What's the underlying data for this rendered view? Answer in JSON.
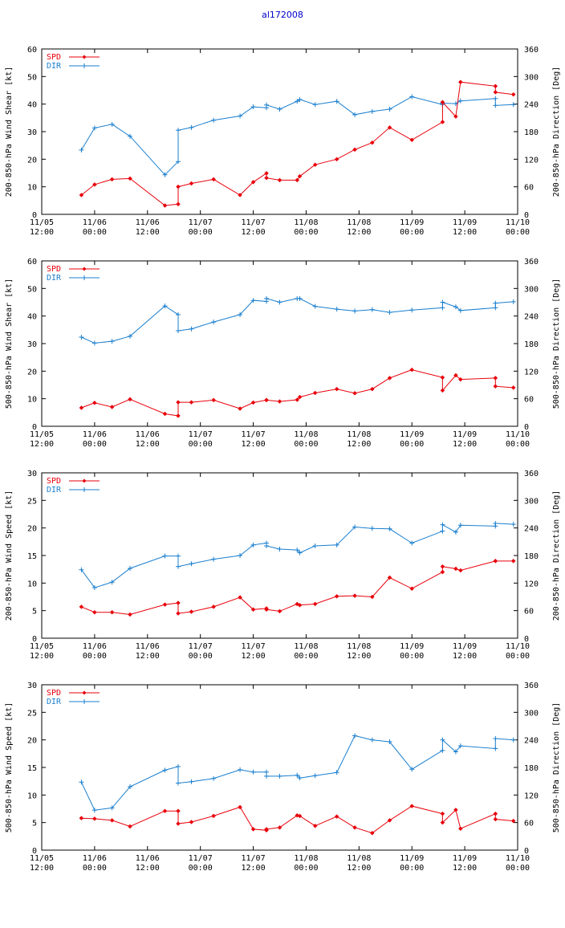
{
  "title": "al172008",
  "colors": {
    "spd": "#e8000b",
    "dir": "#1a7fcf",
    "axis": "#000000",
    "title": "#0000cc"
  },
  "x_ticks": [
    {
      "t": 0,
      "l1": "11/05",
      "l2": "12:00"
    },
    {
      "t": 1,
      "l1": "11/06",
      "l2": "00:00"
    },
    {
      "t": 2,
      "l1": "11/06",
      "l2": "12:00"
    },
    {
      "t": 3,
      "l1": "11/07",
      "l2": "00:00"
    },
    {
      "t": 4,
      "l1": "11/07",
      "l2": "12:00"
    },
    {
      "t": 5,
      "l1": "11/08",
      "l2": "00:00"
    },
    {
      "t": 6,
      "l1": "11/08",
      "l2": "12:00"
    },
    {
      "t": 7,
      "l1": "11/09",
      "l2": "00:00"
    },
    {
      "t": 8,
      "l1": "11/09",
      "l2": "12:00"
    },
    {
      "t": 9,
      "l1": "11/10",
      "l2": "00:00"
    }
  ],
  "chart_data": [
    {
      "type": "line",
      "ylabel": "200-850-hPa Wind Shear [kt]",
      "y2label": "200-850-hPa Direction [Deg]",
      "ylim": [
        0,
        60
      ],
      "y2lim": [
        0,
        360
      ],
      "yticks": [
        0,
        10,
        20,
        30,
        40,
        50,
        60
      ],
      "y2ticks": [
        0,
        60,
        120,
        180,
        240,
        300,
        360
      ],
      "legend": [
        "SPD",
        "DIR"
      ],
      "spd": [
        [
          0.75,
          7
        ],
        [
          1.0,
          10.8
        ],
        [
          1.33,
          12.7
        ],
        [
          1.67,
          13
        ],
        [
          2.33,
          3.2
        ],
        [
          2.58,
          3.7
        ],
        [
          2.58,
          10
        ],
        [
          2.83,
          11.2
        ],
        [
          3.25,
          12.7
        ],
        [
          3.75,
          7
        ],
        [
          4.0,
          11.7
        ],
        [
          4.25,
          14.9
        ],
        [
          4.25,
          13.2
        ],
        [
          4.5,
          12.4
        ],
        [
          4.83,
          12.4
        ],
        [
          4.88,
          13.8
        ],
        [
          5.17,
          18
        ],
        [
          5.58,
          20
        ],
        [
          5.92,
          23.5
        ],
        [
          6.25,
          26
        ],
        [
          6.58,
          31.5
        ],
        [
          7.0,
          27
        ],
        [
          7.58,
          33.5
        ],
        [
          7.58,
          40.7
        ],
        [
          7.83,
          35.5
        ],
        [
          7.92,
          48
        ],
        [
          8.58,
          46.5
        ],
        [
          8.58,
          44.3
        ],
        [
          8.92,
          43.5
        ]
      ],
      "dir": [
        [
          0.75,
          140
        ],
        [
          1.0,
          188
        ],
        [
          1.33,
          196
        ],
        [
          1.67,
          170
        ],
        [
          2.33,
          86
        ],
        [
          2.58,
          115
        ],
        [
          2.58,
          183
        ],
        [
          2.83,
          189
        ],
        [
          3.25,
          205
        ],
        [
          3.75,
          214
        ],
        [
          4.0,
          234
        ],
        [
          4.25,
          232
        ],
        [
          4.25,
          238
        ],
        [
          4.5,
          229
        ],
        [
          4.83,
          246
        ],
        [
          4.88,
          250
        ],
        [
          5.17,
          239
        ],
        [
          5.58,
          246
        ],
        [
          5.92,
          217
        ],
        [
          6.25,
          224
        ],
        [
          6.58,
          229
        ],
        [
          7.0,
          256
        ],
        [
          7.58,
          239
        ],
        [
          7.58,
          242
        ],
        [
          7.83,
          241
        ],
        [
          7.92,
          247
        ],
        [
          8.58,
          252
        ],
        [
          8.58,
          237
        ],
        [
          8.92,
          239
        ]
      ]
    },
    {
      "type": "line",
      "ylabel": "500-850-hPa Wind Shear [kt]",
      "y2label": "500-850-hPa Direction [Deg]",
      "ylim": [
        0,
        60
      ],
      "y2lim": [
        0,
        360
      ],
      "yticks": [
        0,
        10,
        20,
        30,
        40,
        50,
        60
      ],
      "y2ticks": [
        0,
        60,
        120,
        180,
        240,
        300,
        360
      ],
      "legend": [
        "SPD",
        "DIR"
      ],
      "spd": [
        [
          0.75,
          6.7
        ],
        [
          1.0,
          8.5
        ],
        [
          1.33,
          7
        ],
        [
          1.67,
          9.8
        ],
        [
          2.33,
          4.5
        ],
        [
          2.58,
          3.8
        ],
        [
          2.58,
          8.7
        ],
        [
          2.83,
          8.7
        ],
        [
          3.25,
          9.5
        ],
        [
          3.75,
          6.4
        ],
        [
          4.0,
          8.6
        ],
        [
          4.25,
          9.5
        ],
        [
          4.25,
          9.5
        ],
        [
          4.5,
          9
        ],
        [
          4.83,
          9.6
        ],
        [
          4.88,
          10.6
        ],
        [
          5.17,
          12.1
        ],
        [
          5.58,
          13.5
        ],
        [
          5.92,
          12
        ],
        [
          6.25,
          13.5
        ],
        [
          6.58,
          17.5
        ],
        [
          7.0,
          20.5
        ],
        [
          7.58,
          17.7
        ],
        [
          7.58,
          13
        ],
        [
          7.83,
          18.5
        ],
        [
          7.92,
          17
        ],
        [
          8.58,
          17.5
        ],
        [
          8.58,
          14.5
        ],
        [
          8.92,
          14
        ]
      ],
      "dir": [
        [
          0.75,
          194
        ],
        [
          1.0,
          181
        ],
        [
          1.33,
          185
        ],
        [
          1.67,
          196
        ],
        [
          2.33,
          262
        ],
        [
          2.58,
          243
        ],
        [
          2.58,
          208
        ],
        [
          2.83,
          212
        ],
        [
          3.25,
          227
        ],
        [
          3.75,
          243
        ],
        [
          4.0,
          274
        ],
        [
          4.25,
          272
        ],
        [
          4.25,
          278
        ],
        [
          4.5,
          270
        ],
        [
          4.83,
          278
        ],
        [
          4.88,
          278
        ],
        [
          5.17,
          261
        ],
        [
          5.58,
          255
        ],
        [
          5.92,
          251
        ],
        [
          6.25,
          254
        ],
        [
          6.58,
          248
        ],
        [
          7.0,
          253
        ],
        [
          7.58,
          258
        ],
        [
          7.58,
          270
        ],
        [
          7.83,
          260
        ],
        [
          7.92,
          252
        ],
        [
          8.58,
          258
        ],
        [
          8.58,
          268
        ],
        [
          8.92,
          271
        ]
      ]
    },
    {
      "type": "line",
      "ylabel": "200-850-hPa Wind Speed [kt]",
      "y2label": "200-850-hPa Direction [Deg]",
      "ylim": [
        0,
        30
      ],
      "y2lim": [
        0,
        360
      ],
      "yticks": [
        0,
        5,
        10,
        15,
        20,
        25,
        30
      ],
      "y2ticks": [
        0,
        60,
        120,
        180,
        240,
        300,
        360
      ],
      "legend": [
        "SPD",
        "DIR"
      ],
      "spd": [
        [
          0.75,
          5.7
        ],
        [
          1.0,
          4.7
        ],
        [
          1.33,
          4.7
        ],
        [
          1.67,
          4.3
        ],
        [
          2.33,
          6.1
        ],
        [
          2.58,
          6.4
        ],
        [
          2.58,
          4.5
        ],
        [
          2.83,
          4.8
        ],
        [
          3.25,
          5.7
        ],
        [
          3.75,
          7.4
        ],
        [
          4.0,
          5.2
        ],
        [
          4.25,
          5.4
        ],
        [
          4.25,
          5.2
        ],
        [
          4.5,
          4.9
        ],
        [
          4.83,
          6.2
        ],
        [
          4.88,
          6.0
        ],
        [
          5.17,
          6.2
        ],
        [
          5.58,
          7.6
        ],
        [
          5.92,
          7.7
        ],
        [
          6.25,
          7.5
        ],
        [
          6.58,
          11
        ],
        [
          7.0,
          9
        ],
        [
          7.58,
          12
        ],
        [
          7.58,
          13
        ],
        [
          7.83,
          12.6
        ],
        [
          7.92,
          12.3
        ],
        [
          8.58,
          14
        ],
        [
          8.58,
          14
        ],
        [
          8.92,
          14
        ]
      ],
      "dir": [
        [
          0.75,
          149
        ],
        [
          1.0,
          110
        ],
        [
          1.33,
          122
        ],
        [
          1.67,
          152
        ],
        [
          2.33,
          179
        ],
        [
          2.58,
          179
        ],
        [
          2.58,
          156
        ],
        [
          2.83,
          162
        ],
        [
          3.25,
          172
        ],
        [
          3.75,
          180
        ],
        [
          4.0,
          203
        ],
        [
          4.25,
          207
        ],
        [
          4.25,
          201
        ],
        [
          4.5,
          194
        ],
        [
          4.83,
          192
        ],
        [
          4.88,
          186
        ],
        [
          5.17,
          201
        ],
        [
          5.58,
          203
        ],
        [
          5.92,
          242
        ],
        [
          6.25,
          239
        ],
        [
          6.58,
          238
        ],
        [
          7.0,
          207
        ],
        [
          7.58,
          233
        ],
        [
          7.58,
          247
        ],
        [
          7.83,
          231
        ],
        [
          7.92,
          246
        ],
        [
          8.58,
          244
        ],
        [
          8.58,
          250
        ],
        [
          8.92,
          248
        ]
      ]
    },
    {
      "type": "line",
      "ylabel": "500-850-hPa Wind Speed [kt]",
      "y2label": "500-850-hPa Direction [Deg]",
      "ylim": [
        0,
        30
      ],
      "y2lim": [
        0,
        360
      ],
      "yticks": [
        0,
        5,
        10,
        15,
        20,
        25,
        30
      ],
      "y2ticks": [
        0,
        60,
        120,
        180,
        240,
        300,
        360
      ],
      "legend": [
        "SPD",
        "DIR"
      ],
      "spd": [
        [
          0.75,
          5.8
        ],
        [
          1.0,
          5.7
        ],
        [
          1.33,
          5.4
        ],
        [
          1.67,
          4.3
        ],
        [
          2.33,
          7.1
        ],
        [
          2.58,
          7.1
        ],
        [
          2.58,
          4.8
        ],
        [
          2.83,
          5.1
        ],
        [
          3.25,
          6.2
        ],
        [
          3.75,
          7.8
        ],
        [
          4.0,
          3.8
        ],
        [
          4.25,
          3.6
        ],
        [
          4.25,
          3.8
        ],
        [
          4.5,
          4.1
        ],
        [
          4.83,
          6.3
        ],
        [
          4.88,
          6.2
        ],
        [
          5.17,
          4.4
        ],
        [
          5.58,
          6.1
        ],
        [
          5.92,
          4.1
        ],
        [
          6.25,
          3.1
        ],
        [
          6.58,
          5.4
        ],
        [
          7.0,
          8
        ],
        [
          7.58,
          6.6
        ],
        [
          7.58,
          5
        ],
        [
          7.83,
          7.3
        ],
        [
          7.92,
          3.9
        ],
        [
          8.58,
          6.6
        ],
        [
          8.58,
          5.6
        ],
        [
          8.92,
          5.3
        ]
      ],
      "dir": [
        [
          0.75,
          148
        ],
        [
          1.0,
          87
        ],
        [
          1.33,
          92
        ],
        [
          1.67,
          138
        ],
        [
          2.33,
          174
        ],
        [
          2.58,
          182
        ],
        [
          2.58,
          146
        ],
        [
          2.83,
          149
        ],
        [
          3.25,
          156
        ],
        [
          3.75,
          175
        ],
        [
          4.0,
          170
        ],
        [
          4.25,
          170
        ],
        [
          4.25,
          161
        ],
        [
          4.5,
          161
        ],
        [
          4.83,
          163
        ],
        [
          4.88,
          157
        ],
        [
          5.17,
          162
        ],
        [
          5.58,
          169
        ],
        [
          5.92,
          249
        ],
        [
          6.25,
          240
        ],
        [
          6.58,
          236
        ],
        [
          7.0,
          176
        ],
        [
          7.58,
          217
        ],
        [
          7.58,
          240
        ],
        [
          7.83,
          214
        ],
        [
          7.92,
          227
        ],
        [
          8.58,
          221
        ],
        [
          8.58,
          243
        ],
        [
          8.92,
          240
        ]
      ]
    }
  ]
}
